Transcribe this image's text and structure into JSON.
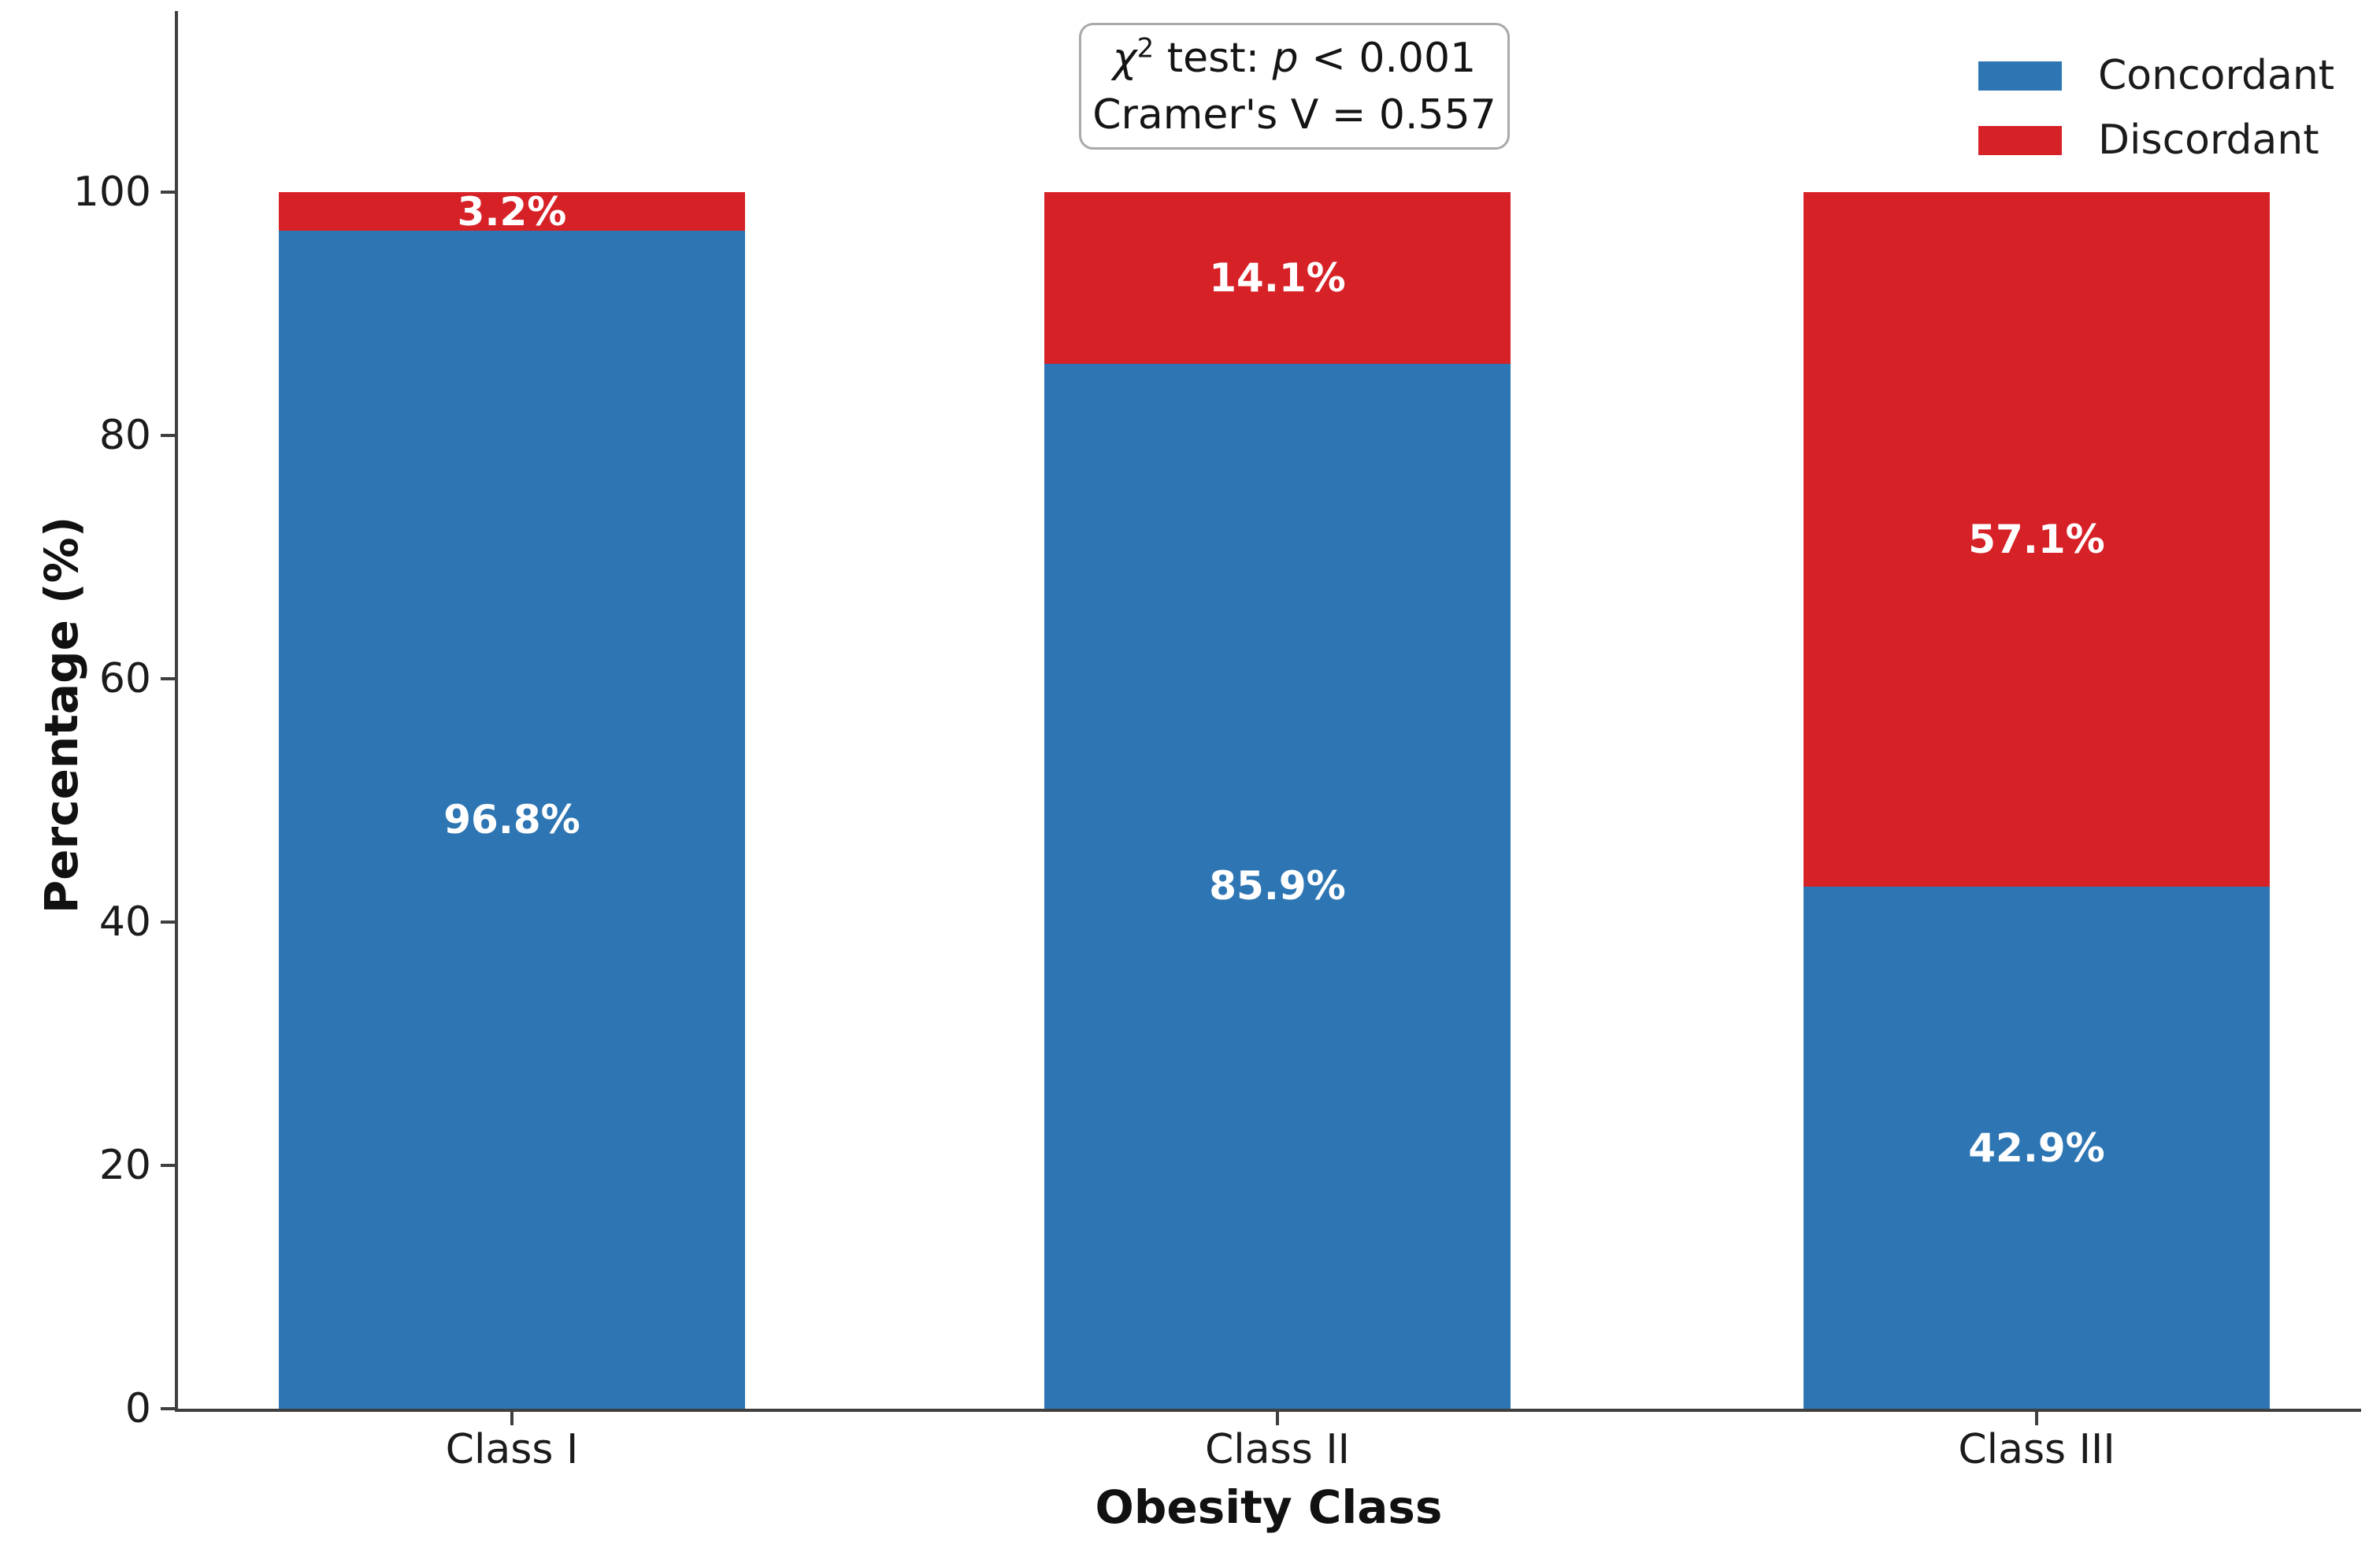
{
  "chart_data": {
    "type": "bar",
    "stacked": true,
    "title": "",
    "xlabel": "Obesity Class",
    "ylabel": "Percentage (%)",
    "categories": [
      "Class I",
      "Class II",
      "Class III"
    ],
    "series": [
      {
        "name": "Concordant",
        "color": "#2e76b3",
        "values": [
          96.8,
          85.9,
          42.9
        ],
        "labels": [
          "96.8%",
          "85.9%",
          "42.9%"
        ]
      },
      {
        "name": "Discordant",
        "color": "#d62127",
        "values": [
          3.2,
          14.1,
          57.1
        ],
        "labels": [
          "3.2%",
          "14.1%",
          "57.1%"
        ]
      }
    ],
    "yticks": [
      0,
      20,
      40,
      60,
      80,
      100
    ],
    "ylim": [
      0,
      115
    ],
    "grid": false,
    "legend_position": "upper right",
    "annotation": {
      "chi": "χ",
      "chi_sup": "2",
      "mid": " test: ",
      "p": "p",
      "tail": " < 0.001",
      "line2": "Cramer's V = 0.557"
    },
    "bar_label_color": "#ffffff",
    "axis_color": "#3f3f3f"
  }
}
